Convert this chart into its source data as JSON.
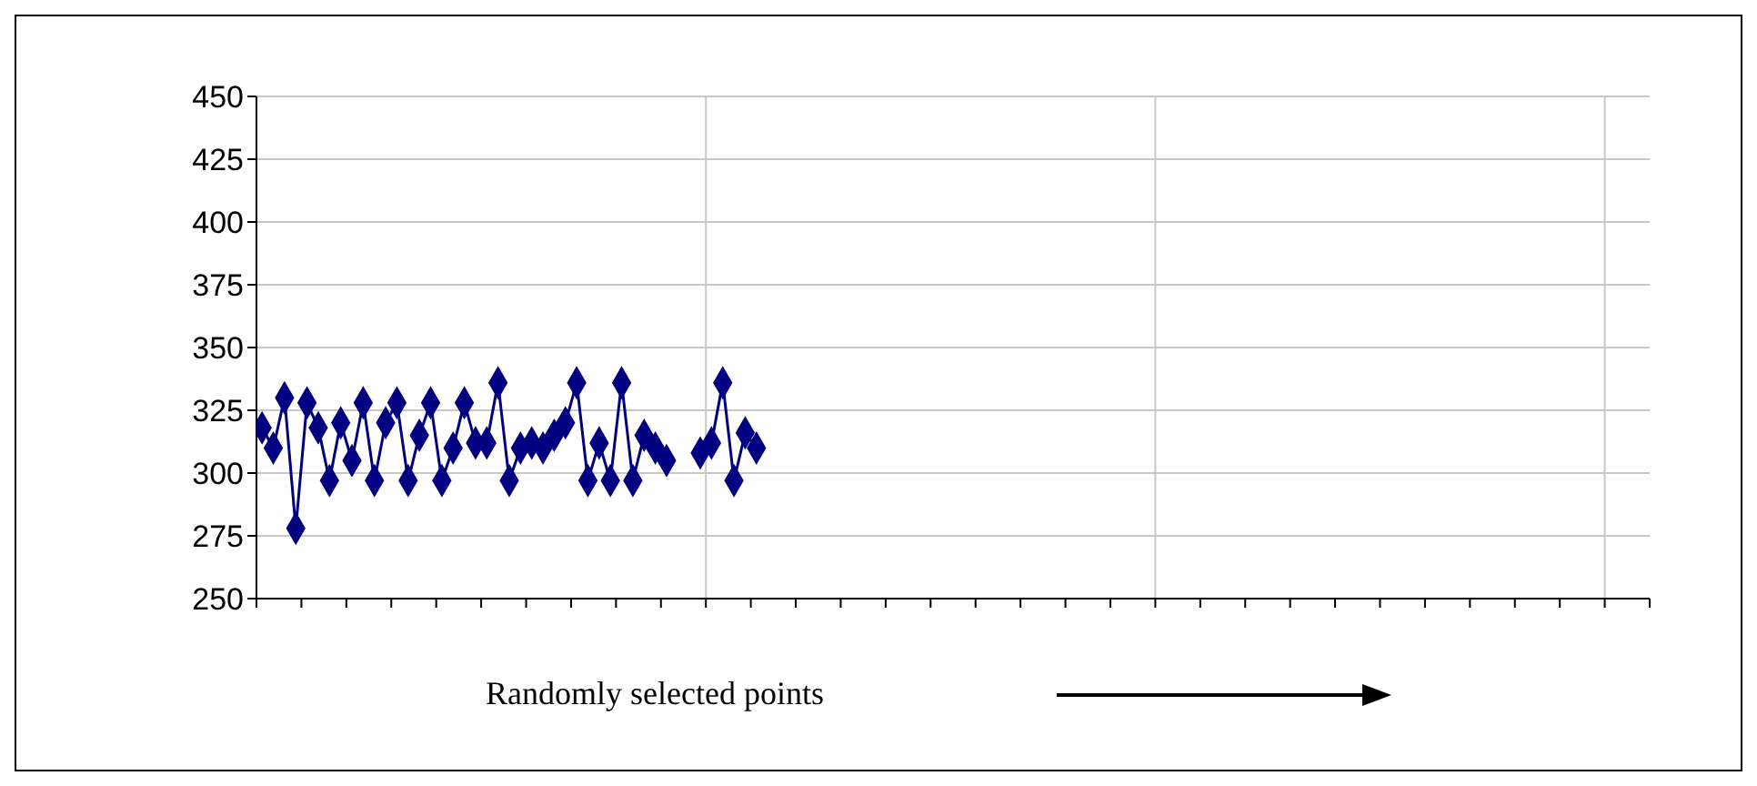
{
  "chart_data": {
    "type": "line",
    "xlabel": "Randomly selected points",
    "categories": [
      null,
      null,
      null,
      null,
      null,
      null,
      null,
      null,
      null,
      null,
      null,
      null,
      null,
      null,
      null,
      null,
      null,
      null,
      null,
      null,
      null,
      null,
      null,
      null,
      null,
      null,
      null,
      null,
      null,
      null,
      null,
      null,
      null,
      null,
      null,
      null,
      null,
      null,
      null,
      null,
      null,
      null,
      null,
      null,
      null,
      null,
      null,
      null,
      null,
      null,
      null,
      null,
      null,
      null,
      null,
      null,
      null,
      null,
      null,
      null,
      null,
      null,
      null,
      null,
      null,
      null,
      null,
      null,
      null,
      null,
      null,
      null,
      null,
      null,
      null,
      null,
      null,
      null,
      null,
      null,
      null,
      null,
      null,
      null,
      null,
      null,
      null,
      null,
      null,
      null,
      null,
      null,
      null,
      null,
      null,
      null,
      null,
      null,
      null,
      null,
      null,
      null,
      null,
      null,
      null,
      null,
      null,
      null,
      null,
      null,
      null,
      null,
      null,
      null,
      null,
      null,
      null,
      null,
      null,
      null,
      null,
      null,
      null,
      null
    ],
    "series": [
      {
        "color": "#000080",
        "values": [
          318,
          310,
          330,
          278,
          328,
          318,
          297,
          320,
          305,
          328,
          297,
          320,
          328,
          297,
          315,
          328,
          297,
          310,
          328,
          312,
          312,
          336,
          297,
          310,
          312,
          310,
          315,
          320,
          336,
          297,
          312,
          297,
          336,
          297,
          315,
          310,
          305,
          null,
          null,
          308,
          312,
          336,
          297,
          316,
          310,
          null,
          null,
          null,
          null,
          null,
          null,
          null,
          null,
          null,
          null,
          null,
          null,
          null,
          null,
          null,
          null,
          null,
          null,
          null,
          null,
          null,
          null,
          null,
          null,
          null,
          null,
          null,
          null,
          null,
          null,
          null,
          null,
          null,
          null,
          null,
          null,
          null,
          null,
          null,
          null,
          null,
          null,
          null,
          null,
          null,
          null,
          null,
          null,
          null,
          null,
          null,
          null,
          null,
          null,
          null,
          null,
          null,
          null,
          null,
          null,
          null,
          null,
          null,
          null,
          null,
          null,
          null,
          null,
          null,
          null,
          null,
          null,
          null,
          null,
          null,
          null,
          null,
          null,
          null
        ]
      }
    ],
    "ylim": [
      250,
      450
    ],
    "yticks": [
      250,
      275,
      300,
      325,
      350,
      375,
      400,
      425,
      450
    ],
    "grid": true,
    "marker": "diamond"
  }
}
